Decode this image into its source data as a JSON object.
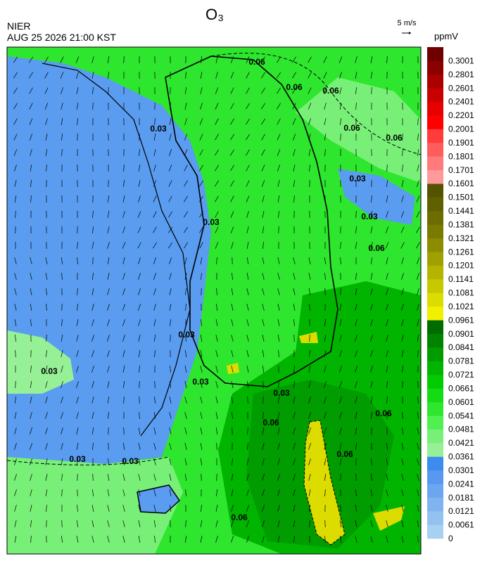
{
  "header": {
    "title": "O₃",
    "agency": "NIER",
    "datetime": "AUG 25 2026 21:00 KST",
    "wind_scale": "5 m/s"
  },
  "colorbar": {
    "unit": "ppmV",
    "labels": [
      "0",
      "0.0061",
      "0.0121",
      "0.0181",
      "0.0241",
      "0.0301",
      "0.0361",
      "0.0421",
      "0.0481",
      "0.0541",
      "0.0601",
      "0.0661",
      "0.0721",
      "0.0781",
      "0.0841",
      "0.0901",
      "0.0961",
      "0.1021",
      "0.1081",
      "0.1141",
      "0.1201",
      "0.1261",
      "0.1321",
      "0.1381",
      "0.1441",
      "0.1501",
      "0.1601",
      "0.1701",
      "0.1801",
      "0.1901",
      "0.2001",
      "0.2201",
      "0.2401",
      "0.2601",
      "0.2801",
      "0.3001"
    ],
    "colors": [
      "#a8d0f0",
      "#94c2f0",
      "#80b4f0",
      "#6ca6f0",
      "#5898f0",
      "#3c8cf0",
      "#96f096",
      "#78f078",
      "#50f050",
      "#2ee62e",
      "#14dc14",
      "#00cc00",
      "#00b400",
      "#009c00",
      "#008400",
      "#006c00",
      "#f0f000",
      "#dcdc00",
      "#c8c800",
      "#b4b400",
      "#a0a000",
      "#8c8c00",
      "#7a7a00",
      "#6c6c00",
      "#606000",
      "#545400",
      "#ff9a9a",
      "#ff7a7a",
      "#ff5c5c",
      "#ff3c3c",
      "#ff0000",
      "#e60000",
      "#c80000",
      "#aa0000",
      "#8c0000",
      "#6e0000"
    ]
  },
  "map": {
    "contour_labels": [
      "0.06",
      "0.06",
      "0.06",
      "0.06",
      "0.06",
      "0.06",
      "0.06",
      "0.06",
      "0.06",
      "0.06",
      "0.03",
      "0.03",
      "0.03",
      "0.03",
      "0.03",
      "0.03",
      "0.03",
      "0.03",
      "0.03",
      "0.03"
    ]
  }
}
